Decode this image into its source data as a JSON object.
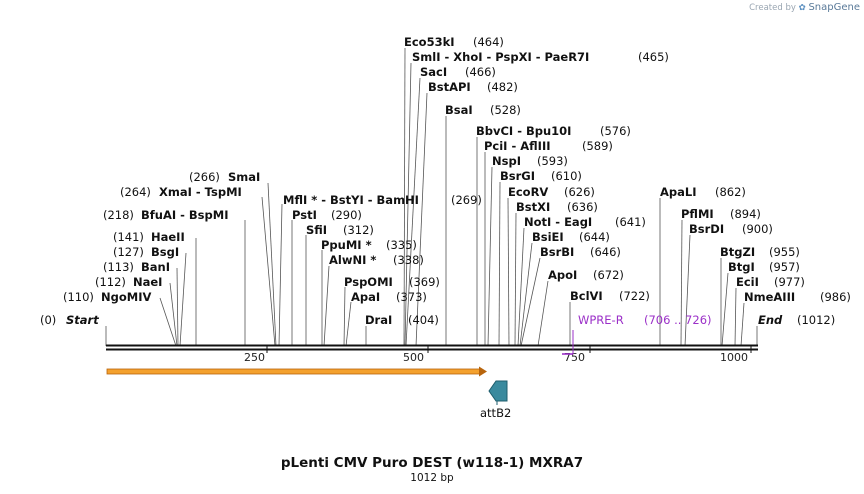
{
  "watermark": {
    "prefix": "Created by",
    "brand": "SnapGene"
  },
  "title": "pLenti CMV Puro DEST (w118-1) MXRA7",
  "length_label": "1012 bp",
  "ruler_ticks": [
    "250",
    "500",
    "750",
    "1000"
  ],
  "end_labels": [
    {
      "text": "Start",
      "pos": "(0)"
    },
    {
      "text": "End",
      "pos": "(1012)"
    }
  ],
  "sites": [
    {
      "text": "Eco53kI",
      "pos": "(464)"
    },
    {
      "text": "SmlI  -  XhoI  -  PspXI  -  PaeR7I",
      "pos": "(465)"
    },
    {
      "text": "SacI",
      "pos": "(466)"
    },
    {
      "text": "BstAPI",
      "pos": "(482)"
    },
    {
      "text": "BsaI",
      "pos": "(528)"
    },
    {
      "text": "BbvCI  -  Bpu10I",
      "pos": "(576)"
    },
    {
      "text": "PciI  -  AflIII",
      "pos": "(589)"
    },
    {
      "text": "NspI",
      "pos": "(593)"
    },
    {
      "text": "BsrGI",
      "pos": "(610)"
    },
    {
      "text": "EcoRV",
      "pos": "(626)"
    },
    {
      "text": "BstXI",
      "pos": "(636)"
    },
    {
      "text": "NotI  -  EagI",
      "pos": "(641)"
    },
    {
      "text": "BsiEI",
      "pos": "(644)"
    },
    {
      "text": "BsrBI",
      "pos": "(646)"
    },
    {
      "text": "ApoI",
      "pos": "(672)"
    },
    {
      "text": "BclVI",
      "pos": "(722)"
    },
    {
      "text": "ApaLI",
      "pos": "(862)"
    },
    {
      "text": "PflMI",
      "pos": "(894)"
    },
    {
      "text": "BsrDI",
      "pos": "(900)"
    },
    {
      "text": "BtgZI",
      "pos": "(955)"
    },
    {
      "text": "BtgI",
      "pos": "(957)"
    },
    {
      "text": "EciI",
      "pos": "(977)"
    },
    {
      "text": "NmeAIII",
      "pos": "(986)"
    },
    {
      "text": "SmaI",
      "pos": "(266)"
    },
    {
      "text": "XmaI  -  TspMI",
      "pos": "(264)"
    },
    {
      "text": "MflI *  -  BstYI  -  BamHI",
      "pos": "(269)"
    },
    {
      "text": "BfuAI  -  BspMI",
      "pos": "(218)"
    },
    {
      "text": "PstI",
      "pos": "(290)"
    },
    {
      "text": "SfiI",
      "pos": "(312)"
    },
    {
      "text": "PpuMI *",
      "pos": "(335)"
    },
    {
      "text": "AlwNI *",
      "pos": "(338)"
    },
    {
      "text": "PspOMI",
      "pos": "(369)"
    },
    {
      "text": "ApaI",
      "pos": "(373)"
    },
    {
      "text": "DraI",
      "pos": "(404)"
    },
    {
      "text": "HaeII",
      "pos": "(141)"
    },
    {
      "text": "BsgI",
      "pos": "(127)"
    },
    {
      "text": "BanI",
      "pos": "(113)"
    },
    {
      "text": "NaeI",
      "pos": "(112)"
    },
    {
      "text": "NgoMIV",
      "pos": "(110)"
    }
  ],
  "features": [
    {
      "name": "WPRE-R",
      "range": "(706 .. 726)",
      "color": "#9b30c8"
    },
    {
      "name": "attB2",
      "color": "#3a8a9e"
    }
  ],
  "colors": {
    "orf_fill": "#f4a12e",
    "orf_outline": "#b8650d",
    "attb2": "#3a8a9e",
    "wpre": "#9b30c8"
  }
}
